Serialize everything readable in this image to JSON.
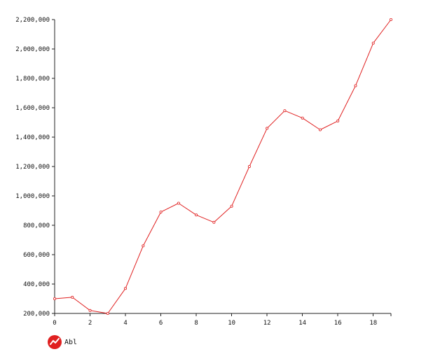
{
  "chart_data": {
    "type": "line",
    "x": [
      0,
      1,
      2,
      3,
      4,
      5,
      6,
      7,
      8,
      9,
      10,
      11,
      12,
      13,
      14,
      15,
      16,
      17,
      18,
      19
    ],
    "series": [
      {
        "name": "Abl",
        "values": [
          300000,
          310000,
          220000,
          200000,
          370000,
          660000,
          890000,
          950000,
          870000,
          820000,
          930000,
          1200000,
          1460000,
          1580000,
          1530000,
          1450000,
          1510000,
          1750000,
          2040000,
          2200000
        ],
        "color": "#e02020"
      }
    ],
    "x_ticks": [
      "0",
      "2",
      "4",
      "6",
      "8",
      "10",
      "12",
      "14",
      "16",
      "18"
    ],
    "y_ticks": [
      "200,000",
      "400,000",
      "600,000",
      "800,000",
      "1,000,000",
      "1,200,000",
      "1,400,000",
      "1,600,000",
      "1,800,000",
      "2,000,000",
      "2,200,000"
    ],
    "xlim": [
      0,
      19
    ],
    "ylim": [
      200000,
      2200000
    ],
    "grid": false,
    "legend_placement": "bottom-left",
    "title": "",
    "xlabel": "",
    "ylabel": ""
  }
}
